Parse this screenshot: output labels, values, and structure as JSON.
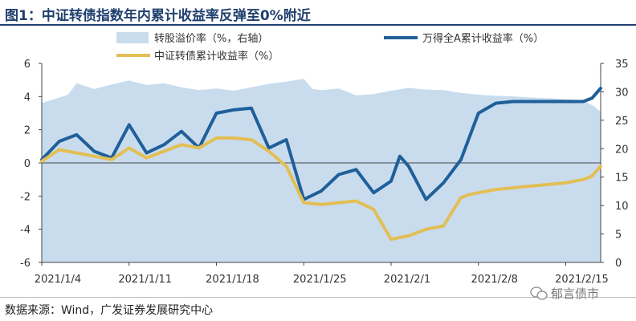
{
  "header": {
    "title": "图1：中证转债指数年内累计收益率反弹至0%附近"
  },
  "footer": {
    "source": "数据来源：Wind，广发证券发展研究中心",
    "watermark": "郁言债市"
  },
  "chart_data": {
    "type": "line",
    "x_labels": [
      "2021/1/4",
      "2021/1/11",
      "2021/1/18",
      "2021/1/25",
      "2021/2/1",
      "2021/2/8",
      "2021/2/15"
    ],
    "x_label_index": [
      0,
      5,
      10,
      15,
      20,
      25,
      30
    ],
    "y_left": {
      "min": -6,
      "max": 6,
      "ticks": [
        -6,
        -4,
        -2,
        0,
        2,
        4,
        6
      ]
    },
    "y_right": {
      "min": 0,
      "max": 35,
      "ticks": [
        0,
        5,
        10,
        15,
        20,
        25,
        30,
        35
      ]
    },
    "series": [
      {
        "name": "转股溢价率（%，右轴）",
        "type": "area",
        "axis": "right",
        "color": "#c9dcee",
        "x": [
          0,
          1.5,
          2,
          3,
          4,
          5,
          6,
          7,
          8,
          9,
          10,
          11,
          12,
          13,
          14,
          15,
          15.5,
          16,
          17,
          18,
          19,
          20,
          21,
          22,
          23,
          24,
          25,
          26,
          27,
          28,
          29,
          30,
          31,
          31.6,
          32
        ],
        "values": [
          28,
          29.5,
          31.5,
          30.5,
          31.3,
          32,
          31.2,
          31.5,
          30.8,
          30.3,
          30.6,
          30.2,
          30.8,
          31.4,
          31.8,
          32.3,
          30.5,
          30.3,
          30.6,
          29.4,
          29.6,
          30.2,
          30.7,
          30.4,
          30.3,
          29.8,
          29.5,
          29.3,
          29.2,
          29,
          28.9,
          28.7,
          28.5,
          27.5,
          26.5
        ]
      },
      {
        "name": "万得全A累计收益率（%）",
        "type": "line",
        "axis": "left",
        "color": "#1f5f9a",
        "x": [
          0,
          1,
          2,
          3,
          4,
          5,
          6,
          7,
          8,
          9,
          10,
          11,
          12,
          13,
          14,
          15,
          16,
          17,
          18,
          19,
          20,
          20.5,
          21,
          22,
          23,
          24,
          24.5,
          25,
          26,
          27,
          28,
          29,
          30,
          31,
          31.5,
          32
        ],
        "values": [
          0.2,
          1.3,
          1.7,
          0.7,
          0.3,
          2.3,
          0.6,
          1.1,
          1.9,
          0.9,
          3.0,
          3.2,
          3.3,
          0.9,
          1.4,
          -2.2,
          -1.7,
          -0.7,
          -0.4,
          -1.8,
          -1.1,
          0.4,
          -0.2,
          -2.2,
          -1.2,
          0.2,
          1.6,
          3.0,
          3.6,
          3.7,
          3.7,
          3.7,
          3.7,
          3.7,
          3.9,
          4.5
        ]
      },
      {
        "name": "中证转债累计收益率（%）",
        "type": "line",
        "axis": "left",
        "color": "#e2bf55",
        "x": [
          0,
          1,
          2,
          3,
          4,
          5,
          6,
          7,
          8,
          9,
          10,
          11,
          12,
          13,
          14,
          15,
          16,
          17,
          18,
          19,
          20,
          21,
          22,
          23,
          24,
          24.5,
          25,
          26,
          27,
          28,
          29,
          30,
          31,
          31.5,
          32
        ],
        "values": [
          0.1,
          0.8,
          0.6,
          0.4,
          0.2,
          0.9,
          0.3,
          0.7,
          1.1,
          0.9,
          1.5,
          1.5,
          1.4,
          0.7,
          -0.2,
          -2.4,
          -2.5,
          -2.4,
          -2.3,
          -2.8,
          -4.6,
          -4.4,
          -4.0,
          -3.8,
          -2.1,
          -1.9,
          -1.8,
          -1.6,
          -1.5,
          -1.4,
          -1.3,
          -1.2,
          -1.0,
          -0.8,
          -0.2
        ]
      }
    ],
    "grid": false,
    "legend": "top"
  }
}
